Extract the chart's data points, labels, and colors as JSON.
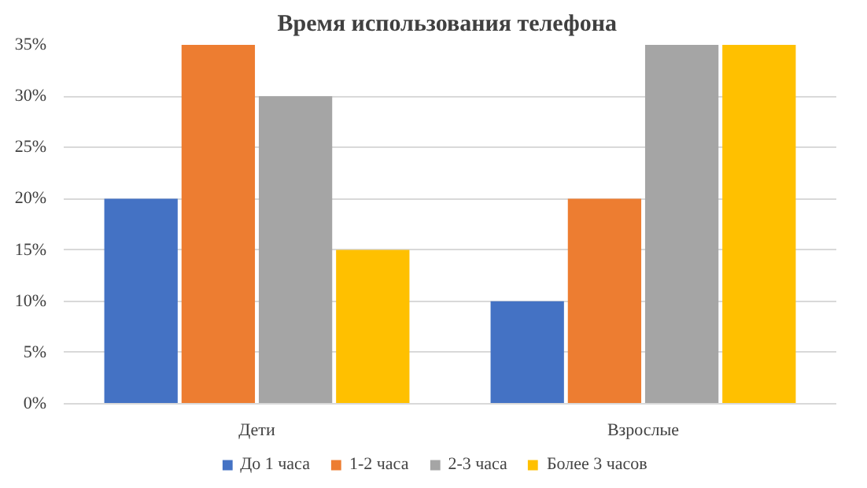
{
  "chart_data": {
    "type": "bar",
    "title": "Время использования  телефона",
    "categories": [
      "Дети",
      "Взрослые"
    ],
    "series": [
      {
        "name": "До 1 часа",
        "color": "#4472c4",
        "values": [
          20,
          10
        ]
      },
      {
        "name": "1-2 часа",
        "color": "#ed7d31",
        "values": [
          35,
          20
        ]
      },
      {
        "name": "2-3 часа",
        "color": "#a5a5a5",
        "values": [
          30,
          35
        ]
      },
      {
        "name": "Более 3 часов",
        "color": "#ffc000",
        "values": [
          15,
          35
        ]
      }
    ],
    "ylim": [
      0,
      35
    ],
    "yticks": [
      {
        "value": 0,
        "label": "0%"
      },
      {
        "value": 5,
        "label": "5%"
      },
      {
        "value": 10,
        "label": "10%"
      },
      {
        "value": 15,
        "label": "15%"
      },
      {
        "value": 20,
        "label": "20%"
      },
      {
        "value": 25,
        "label": "25%"
      },
      {
        "value": 30,
        "label": "30%"
      },
      {
        "value": 35,
        "label": "35%"
      }
    ],
    "grid": "y",
    "legend": "bottom"
  }
}
